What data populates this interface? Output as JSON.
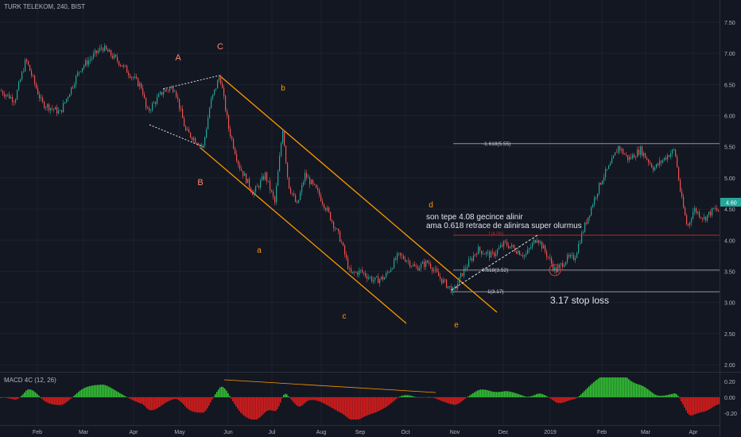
{
  "header": {
    "title": "TURK TELEKOM, 240, BIST"
  },
  "macd_panel": {
    "label": "MACD 4C (12, 26)"
  },
  "colors": {
    "background": "#131722",
    "grid": "#1e222d",
    "candle_up": "#26a69a",
    "candle_down": "#ef5350",
    "macd_up": "#34c534",
    "macd_down": "#e21c1c",
    "wave_label": "#ff8a65",
    "channel": "#ff9800",
    "fib_line": "#8f939c",
    "fib_red": "#b22b2b",
    "price_badge": "#26a69a"
  },
  "chart_data": {
    "type": "candlestick",
    "symbol": "TURK TELEKOM",
    "interval": "240",
    "exchange": "BIST",
    "y_axis": {
      "range": [
        1.9,
        7.65
      ],
      "ticks": [
        "7.50",
        "7.00",
        "6.50",
        "6.00",
        "5.50",
        "5.00",
        "4.50",
        "4.00",
        "3.50",
        "3.00",
        "2.50",
        "2.00"
      ]
    },
    "x_axis": {
      "labels": [
        "Feb",
        "Mar",
        "Apr",
        "May",
        "Jun",
        "Jul",
        "Aug",
        "Sep",
        "Oct",
        "Nov",
        "Dec",
        "2019",
        "Feb",
        "Mar",
        "Apr"
      ]
    },
    "last_price": "4.60",
    "price_path": [
      [
        0,
        6.4
      ],
      [
        18,
        6.25
      ],
      [
        32,
        6.9
      ],
      [
        52,
        6.2
      ],
      [
        75,
        6.05
      ],
      [
        100,
        6.75
      ],
      [
        128,
        7.1
      ],
      [
        150,
        6.85
      ],
      [
        178,
        6.45
      ],
      [
        184,
        6.05
      ],
      [
        205,
        6.4
      ],
      [
        219,
        6.45
      ],
      [
        233,
        5.75
      ],
      [
        255,
        5.5
      ],
      [
        264,
        6.2
      ],
      [
        276,
        6.65
      ],
      [
        287,
        5.8
      ],
      [
        300,
        5.2
      ],
      [
        318,
        4.75
      ],
      [
        333,
        5.05
      ],
      [
        345,
        4.6
      ],
      [
        355,
        5.8
      ],
      [
        362,
        4.9
      ],
      [
        373,
        4.55
      ],
      [
        383,
        5.05
      ],
      [
        400,
        4.75
      ],
      [
        412,
        4.45
      ],
      [
        428,
        4.0
      ],
      [
        440,
        3.45
      ],
      [
        453,
        3.5
      ],
      [
        470,
        3.35
      ],
      [
        483,
        3.4
      ],
      [
        500,
        3.75
      ],
      [
        510,
        3.7
      ],
      [
        522,
        3.55
      ],
      [
        538,
        3.65
      ],
      [
        552,
        3.4
      ],
      [
        570,
        3.17
      ],
      [
        582,
        3.5
      ],
      [
        600,
        3.85
      ],
      [
        618,
        3.75
      ],
      [
        634,
        3.95
      ],
      [
        648,
        3.85
      ],
      [
        660,
        3.75
      ],
      [
        675,
        4.05
      ],
      [
        690,
        3.7
      ],
      [
        698,
        3.5
      ],
      [
        712,
        3.7
      ],
      [
        722,
        3.72
      ],
      [
        730,
        4.05
      ],
      [
        745,
        4.6
      ],
      [
        757,
        5.0
      ],
      [
        767,
        5.2
      ],
      [
        777,
        5.5
      ],
      [
        790,
        5.3
      ],
      [
        805,
        5.45
      ],
      [
        822,
        5.15
      ],
      [
        838,
        5.35
      ],
      [
        848,
        5.45
      ],
      [
        856,
        4.7
      ],
      [
        864,
        4.2
      ],
      [
        872,
        4.5
      ],
      [
        885,
        4.35
      ],
      [
        898,
        4.5
      ],
      [
        905,
        4.45
      ]
    ],
    "annotations": {
      "waves": [
        "A",
        "B",
        "C",
        "a",
        "b",
        "c",
        "d",
        "e"
      ],
      "note_line1": "son tepe 4.08 gecince alinir",
      "note_line2": "ama 0.618 retrace de alinirsa super olurmus",
      "fib_1618": "-1.618(5.55)",
      "fib_red": "1(4.08)",
      "fib_0618": "0.618(3.52)",
      "fib_1": "1(3.17)",
      "stop_loss": "3.17 stop loss"
    },
    "fib_levels": [
      5.55,
      4.08,
      3.52,
      3.17
    ],
    "macd": {
      "y_ticks": [
        "0.20",
        "0.00",
        "-0.20"
      ],
      "range": [
        -0.3,
        0.27
      ]
    }
  }
}
